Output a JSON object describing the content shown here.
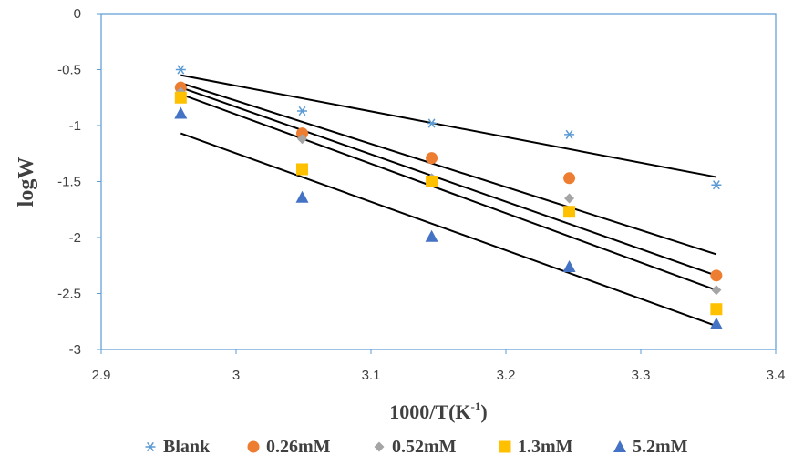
{
  "chart_data": {
    "type": "scatter",
    "xlabel": "1000/T(K",
    "xlabel_sup": "-1",
    "xlabel_close": ")",
    "ylabel": "logW",
    "xlim": [
      2.9,
      3.4
    ],
    "ylim": [
      -3,
      0
    ],
    "x_ticks": [
      "2.9",
      "3",
      "3.1",
      "3.2",
      "3.3",
      "3.4"
    ],
    "y_ticks": [
      "0",
      "-0.5",
      "-1",
      "-1.5",
      "-2",
      "-2.5",
      "-3"
    ],
    "x": [
      2.959,
      3.049,
      3.145,
      3.247,
      3.356
    ],
    "legend_position": "bottom",
    "trendlines": true,
    "series": [
      {
        "name": "Blank",
        "values": [
          -0.5,
          -0.87,
          -0.98,
          -1.08,
          -1.53
        ],
        "color": "#5B9BD5",
        "marker": "asterisk",
        "fit": [
          -0.55,
          -1.46
        ]
      },
      {
        "name": "0.26mM",
        "values": [
          -0.66,
          -1.07,
          -1.29,
          -1.47,
          -2.34
        ],
        "color": "#ED7D31",
        "marker": "circle",
        "fit": [
          -0.62,
          -2.15
        ]
      },
      {
        "name": "0.52mM",
        "values": [
          -0.7,
          -1.12,
          -1.47,
          -1.65,
          -2.47
        ],
        "color": "#A5A5A5",
        "marker": "diamond",
        "fit": [
          -0.66,
          -2.34
        ]
      },
      {
        "name": "1.3mM",
        "values": [
          -0.75,
          -1.39,
          -1.5,
          -1.77,
          -2.64
        ],
        "color": "#FFC000",
        "marker": "square",
        "fit": [
          -0.72,
          -2.47
        ]
      },
      {
        "name": "5.2mM",
        "values": [
          -0.89,
          -1.64,
          -1.99,
          -2.26,
          -2.77
        ],
        "color": "#4472C4",
        "marker": "triangle",
        "fit": [
          -1.07,
          -2.79
        ]
      }
    ]
  }
}
